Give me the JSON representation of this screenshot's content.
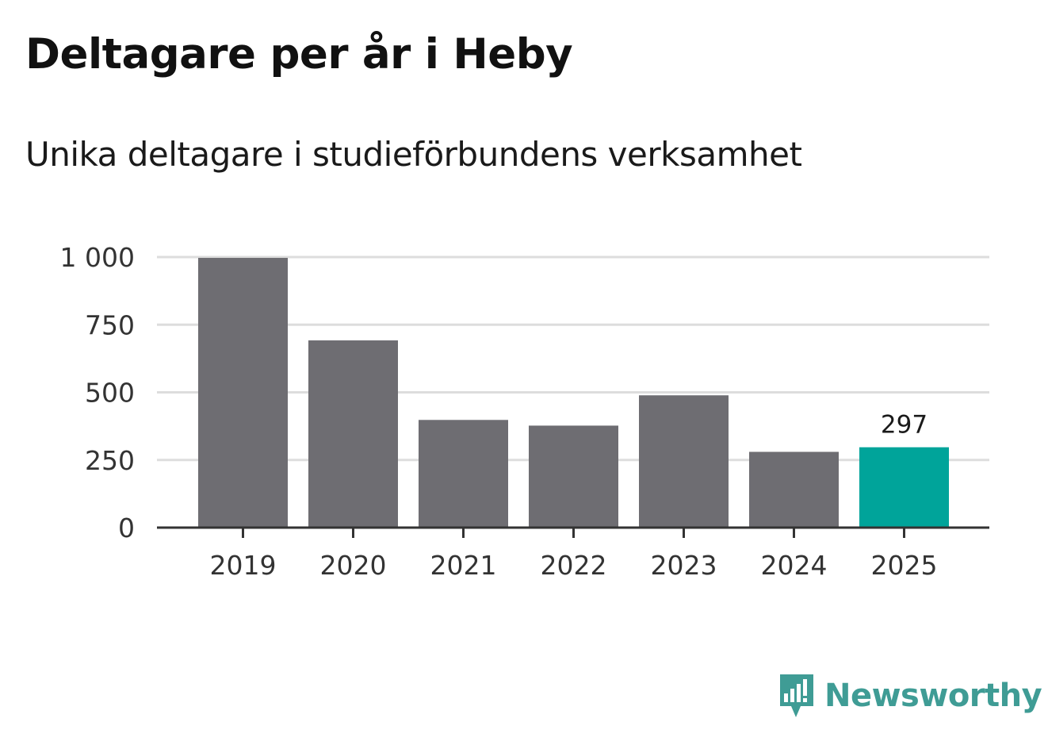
{
  "title": "Deltagare per år i Heby",
  "subtitle": "Unika deltagare i studieförbundens verksamhet",
  "brand": {
    "name": "Newsworthy",
    "icon": "newsworthy-logo-icon",
    "color": "#3f9c95"
  },
  "colors": {
    "bar": "#6e6d72",
    "highlight": "#00a49a",
    "grid": "#dddddd",
    "axis": "#333333"
  },
  "chart_data": {
    "type": "bar",
    "categories": [
      "2019",
      "2020",
      "2021",
      "2022",
      "2023",
      "2024",
      "2025"
    ],
    "values": [
      997,
      692,
      398,
      377,
      489,
      280,
      297
    ],
    "highlight_index": 6,
    "data_labels": [
      {
        "index": 6,
        "text": "297"
      }
    ],
    "yticks": [
      0,
      250,
      500,
      750,
      1000
    ],
    "ytick_labels": [
      "0",
      "250",
      "500",
      "750",
      "1 000"
    ],
    "ylim": [
      0,
      1000
    ],
    "grid": true,
    "legend": false,
    "xlabel": "",
    "ylabel": ""
  }
}
